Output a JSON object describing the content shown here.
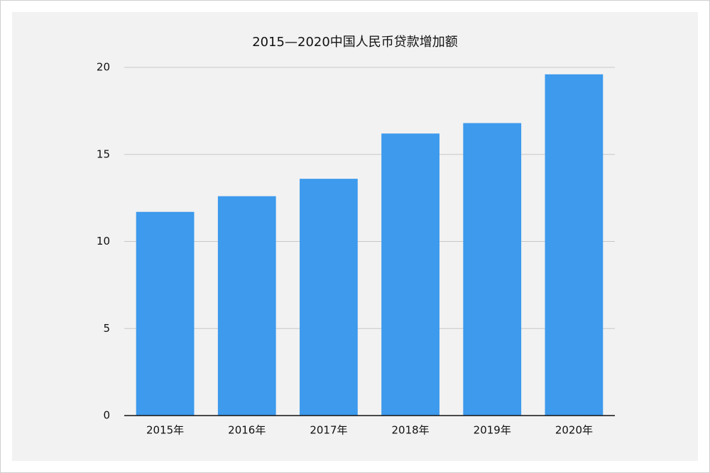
{
  "chart_data": {
    "type": "bar",
    "title": "2015—2020中国人民币贷款增加额",
    "categories": [
      "2015年",
      "2016年",
      "2017年",
      "2018年",
      "2019年",
      "2020年"
    ],
    "values": [
      11.7,
      12.6,
      13.6,
      16.2,
      16.8,
      19.6
    ],
    "color": "#3d9aec",
    "ylim": [
      0,
      20
    ],
    "yticks": [
      0,
      5,
      10,
      15,
      20
    ],
    "grid": true
  }
}
